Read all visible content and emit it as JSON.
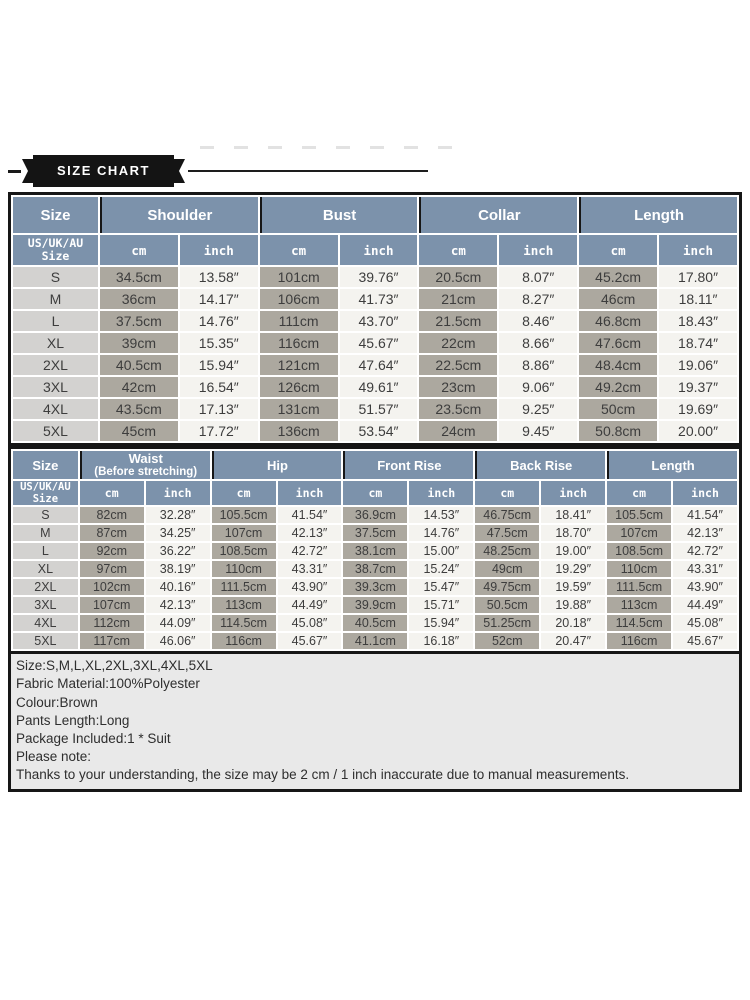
{
  "banner": {
    "title": "SIZE CHART"
  },
  "colors": {
    "ink": "#161616",
    "header_blue": "#7c92ab",
    "cell_size": "#d3d2d0",
    "cell_cm": "#aca89f",
    "cell_inch": "#f4f3ef",
    "note_bg": "#e9e9e9",
    "text_dark": "#3d3d3d"
  },
  "subheader": {
    "line1": "US/UK/AU",
    "line2": "Size",
    "cm": "cm",
    "inch": "inch"
  },
  "table_top": {
    "groups": [
      "Size",
      "Shoulder",
      "Bust",
      "Collar",
      "Length"
    ],
    "rows": [
      [
        "S",
        "34.5cm",
        "13.58″",
        "101cm",
        "39.76″",
        "20.5cm",
        "8.07″",
        "45.2cm",
        "17.80″"
      ],
      [
        "M",
        "36cm",
        "14.17″",
        "106cm",
        "41.73″",
        "21cm",
        "8.27″",
        "46cm",
        "18.11″"
      ],
      [
        "L",
        "37.5cm",
        "14.76″",
        "111cm",
        "43.70″",
        "21.5cm",
        "8.46″",
        "46.8cm",
        "18.43″"
      ],
      [
        "XL",
        "39cm",
        "15.35″",
        "116cm",
        "45.67″",
        "22cm",
        "8.66″",
        "47.6cm",
        "18.74″"
      ],
      [
        "2XL",
        "40.5cm",
        "15.94″",
        "121cm",
        "47.64″",
        "22.5cm",
        "8.86″",
        "48.4cm",
        "19.06″"
      ],
      [
        "3XL",
        "42cm",
        "16.54″",
        "126cm",
        "49.61″",
        "23cm",
        "9.06″",
        "49.2cm",
        "19.37″"
      ],
      [
        "4XL",
        "43.5cm",
        "17.13″",
        "131cm",
        "51.57″",
        "23.5cm",
        "9.25″",
        "50cm",
        "19.69″"
      ],
      [
        "5XL",
        "45cm",
        "17.72″",
        "136cm",
        "53.54″",
        "24cm",
        "9.45″",
        "50.8cm",
        "20.00″"
      ]
    ]
  },
  "table_bottom": {
    "groups": {
      "size": "Size",
      "waist_main": "Waist",
      "waist_sub": "(Before stretching)",
      "hip": "Hip",
      "front_rise": "Front Rise",
      "back_rise": "Back Rise",
      "length": "Length"
    },
    "rows": [
      [
        "S",
        "82cm",
        "32.28″",
        "105.5cm",
        "41.54″",
        "36.9cm",
        "14.53″",
        "46.75cm",
        "18.41″",
        "105.5cm",
        "41.54″"
      ],
      [
        "M",
        "87cm",
        "34.25″",
        "107cm",
        "42.13″",
        "37.5cm",
        "14.76″",
        "47.5cm",
        "18.70″",
        "107cm",
        "42.13″"
      ],
      [
        "L",
        "92cm",
        "36.22″",
        "108.5cm",
        "42.72″",
        "38.1cm",
        "15.00″",
        "48.25cm",
        "19.00″",
        "108.5cm",
        "42.72″"
      ],
      [
        "XL",
        "97cm",
        "38.19″",
        "110cm",
        "43.31″",
        "38.7cm",
        "15.24″",
        "49cm",
        "19.29″",
        "110cm",
        "43.31″"
      ],
      [
        "2XL",
        "102cm",
        "40.16″",
        "111.5cm",
        "43.90″",
        "39.3cm",
        "15.47″",
        "49.75cm",
        "19.59″",
        "111.5cm",
        "43.90″"
      ],
      [
        "3XL",
        "107cm",
        "42.13″",
        "113cm",
        "44.49″",
        "39.9cm",
        "15.71″",
        "50.5cm",
        "19.88″",
        "113cm",
        "44.49″"
      ],
      [
        "4XL",
        "112cm",
        "44.09″",
        "114.5cm",
        "45.08″",
        "40.5cm",
        "15.94″",
        "51.25cm",
        "20.18″",
        "114.5cm",
        "45.08″"
      ],
      [
        "5XL",
        "117cm",
        "46.06″",
        "116cm",
        "45.67″",
        "41.1cm",
        "16.18″",
        "52cm",
        "20.47″",
        "116cm",
        "45.67″"
      ]
    ]
  },
  "notes": {
    "lines": [
      "Size:S,M,L,XL,2XL,3XL,4XL,5XL",
      "Fabric Material:100%Polyester",
      "Colour:Brown",
      "Pants Length:Long",
      "Package Included:1 * Suit",
      "Please note:",
      "Thanks to your understanding, the size may be 2 cm / 1 inch inaccurate due to manual measurements."
    ]
  }
}
